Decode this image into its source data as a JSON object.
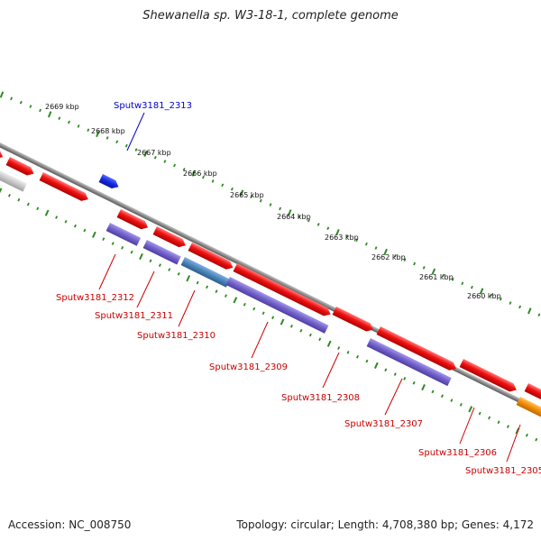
{
  "title": "Shewanella sp. W3-18-1, complete genome",
  "accession_text": "Accession: NC_008750",
  "summary_text": "Topology: circular; Length: 4,708,380 bp; Genes: 4,172",
  "colors": {
    "background": "#ffffff",
    "backbone": "#8a8a8a",
    "tick": "#2e8b22",
    "forward_gene": "#ee1111",
    "reverse_gene": "#7060c8",
    "highlight_gene": "#1428e0",
    "grey_gene": "#c8c8c8",
    "orange_gene": "#f08c00",
    "steel_gene": "#4a84b8",
    "label_red": "#cc0000",
    "label_blue": "#0000cc"
  },
  "scale_labels": [
    "2669 kbp",
    "2668 kbp",
    "2667 kbp",
    "2666 kbp",
    "2665 kbp",
    "2664 kbp",
    "2663 kbp",
    "2662 kbp",
    "2661 kbp",
    "2660 kbp"
  ],
  "gene_labels": [
    {
      "name": "Sputw3181_2313",
      "color": "label_blue"
    },
    {
      "name": "Sputw3181_2312",
      "color": "label_red"
    },
    {
      "name": "Sputw3181_2311",
      "color": "label_red"
    },
    {
      "name": "Sputw3181_2310",
      "color": "label_red"
    },
    {
      "name": "Sputw3181_2309",
      "color": "label_red"
    },
    {
      "name": "Sputw3181_2308",
      "color": "label_red"
    },
    {
      "name": "Sputw3181_2307",
      "color": "label_red"
    },
    {
      "name": "Sputw3181_2306",
      "color": "label_red"
    },
    {
      "name": "Sputw3181_2305",
      "color": "label_red"
    }
  ]
}
